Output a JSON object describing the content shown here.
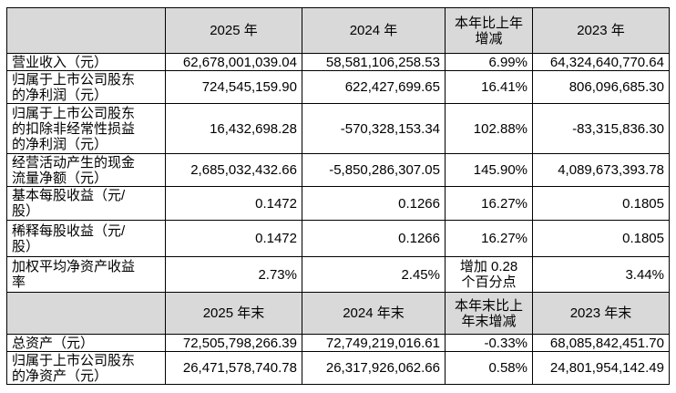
{
  "sections": [
    {
      "header": [
        "2025 年",
        "2024 年",
        "本年比上年增减",
        "2023 年"
      ],
      "rows": [
        {
          "label": "营业收入（元）",
          "values": [
            "62,678,001,039.04",
            "58,581,106,258.53",
            "6.99%",
            "64,324,640,770.64"
          ]
        },
        {
          "label": "归属于上市公司股东的净利润（元）",
          "values": [
            "724,545,159.90",
            "622,427,699.65",
            "16.41%",
            "806,096,685.30"
          ]
        },
        {
          "label": "归属于上市公司股东的扣除非经常性损益的净利润（元）",
          "values": [
            "16,432,698.28",
            "-570,328,153.34",
            "102.88%",
            "-83,315,836.30"
          ]
        },
        {
          "label": "经营活动产生的现金流量净额（元）",
          "values": [
            "2,685,032,432.66",
            "-5,850,286,307.05",
            "145.90%",
            "4,089,673,393.78"
          ]
        },
        {
          "label": "基本每股收益（元/股）",
          "values": [
            "0.1472",
            "0.1266",
            "16.27%",
            "0.1805"
          ]
        },
        {
          "label": "稀释每股收益（元/股）",
          "values": [
            "0.1472",
            "0.1266",
            "16.27%",
            "0.1805"
          ]
        },
        {
          "label": "加权平均净资产收益率",
          "values": [
            "2.73%",
            "2.45%",
            "增加 0.28 个百分点",
            "3.44%"
          ]
        }
      ]
    },
    {
      "header": [
        "2025 年末",
        "2024 年末",
        "本年末比上年末增减",
        "2023 年末"
      ],
      "rows": [
        {
          "label": "总资产（元）",
          "values": [
            "72,505,798,266.39",
            "72,749,219,016.61",
            "-0.33%",
            "68,085,842,451.70"
          ]
        },
        {
          "label": "归属于上市公司股东的净资产（元）",
          "values": [
            "26,471,578,740.78",
            "26,317,926,062.66",
            "0.58%",
            "24,801,954,142.49"
          ]
        }
      ]
    }
  ]
}
